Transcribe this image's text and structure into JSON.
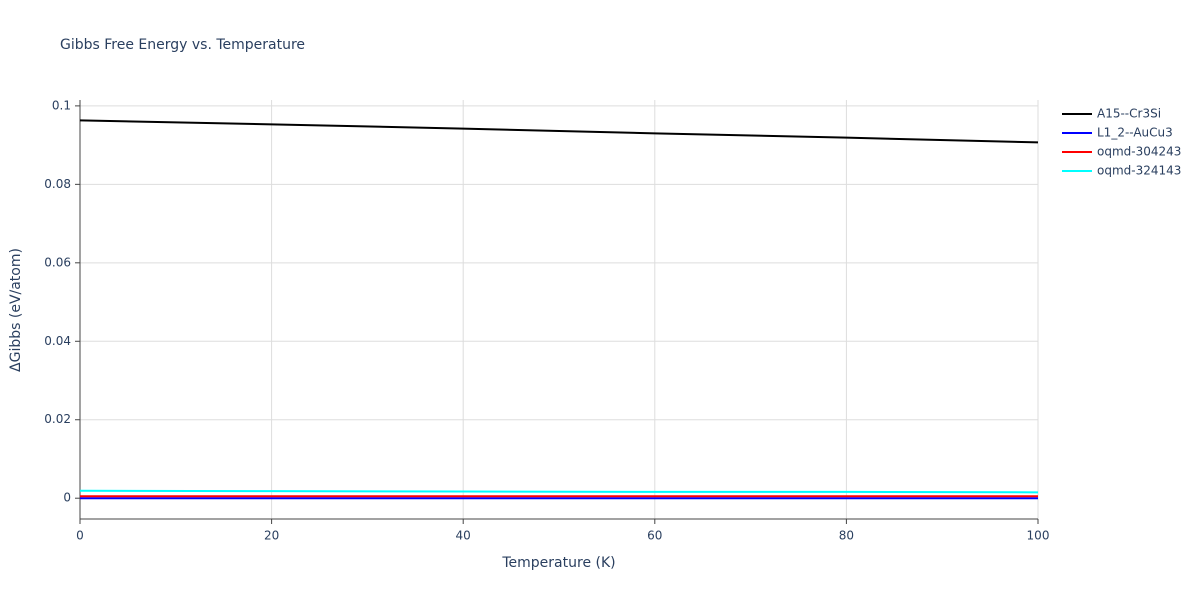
{
  "chart_data": {
    "type": "line",
    "title": "Gibbs Free Energy vs. Temperature",
    "x_label": "Temperature (K)",
    "y_label": "ΔGibbs (eV/atom)",
    "x": [
      0,
      20,
      40,
      60,
      80,
      100
    ],
    "series": [
      {
        "name": "A15--Cr3Si",
        "color": "#000000",
        "values": [
          0.0963,
          0.0953,
          0.0942,
          0.093,
          0.0919,
          0.0907
        ]
      },
      {
        "name": "L1_2--AuCu3",
        "color": "#0000ff",
        "values": [
          0,
          0,
          0,
          0,
          0,
          0
        ]
      },
      {
        "name": "oqmd-304243",
        "color": "#ff0000",
        "values": [
          0.0005,
          0.0005,
          0.0005,
          0.0005,
          0.0005,
          0.0005
        ]
      },
      {
        "name": "oqmd-324143",
        "color": "#00ffff",
        "values": [
          0.0019,
          0.0018,
          0.0017,
          0.0016,
          0.0016,
          0.0015
        ]
      }
    ],
    "xlim": [
      0,
      100
    ],
    "xticks": [
      0,
      20,
      40,
      60,
      80,
      100
    ],
    "ylim": [
      -0.0053,
      0.1015
    ],
    "yticks": [
      0,
      0.02,
      0.04,
      0.06,
      0.08,
      0.1
    ],
    "grid": true,
    "legend": "right"
  }
}
